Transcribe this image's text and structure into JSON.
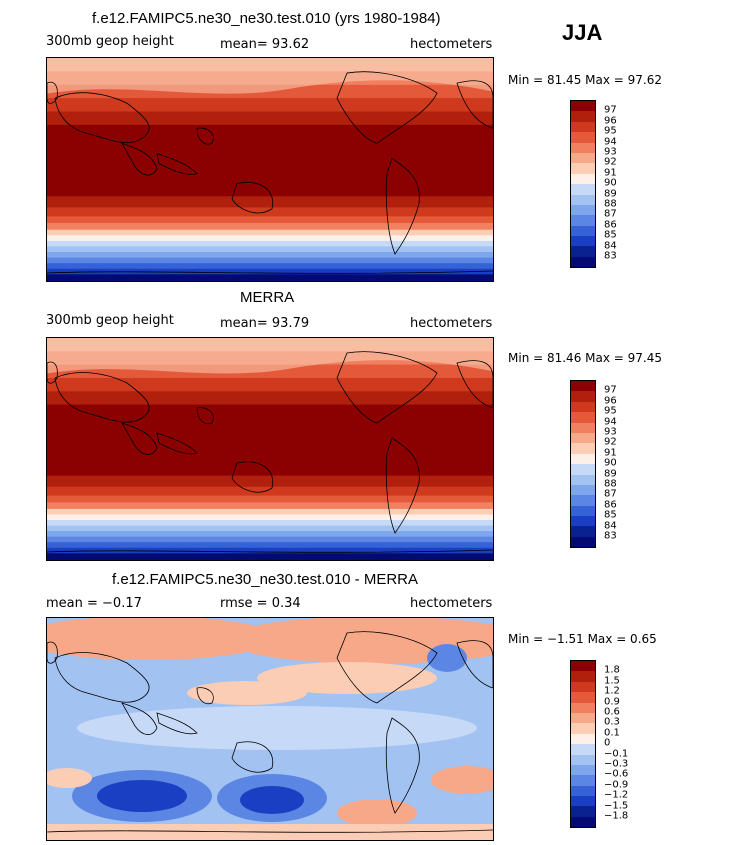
{
  "season": "JJA",
  "panels": [
    {
      "title": "f.e12.FAMIPC5.ne30_ne30.test.010 (yrs 1980-1984)",
      "left_label": "300mb geop height",
      "center_label": "mean=  93.62",
      "right_label": "hectometers",
      "minmax": "Min =  81.45 Max =  97.62",
      "levels": [
        "97",
        "96",
        "95",
        "94",
        "93",
        "92",
        "91",
        "90",
        "89",
        "88",
        "87",
        "86",
        "85",
        "84",
        "83"
      ],
      "colors": [
        "#8b0000",
        "#b0200c",
        "#cf3a1e",
        "#e4593a",
        "#f08060",
        "#f6a889",
        "#fbcdb5",
        "#fdf0e8",
        "#c6daf7",
        "#a2c2f2",
        "#7ea6ec",
        "#5b86e4",
        "#3662d8",
        "#1a3fc2",
        "#0a2190",
        "#030b73"
      ]
    },
    {
      "title": "MERRA",
      "left_label": "300mb geop height",
      "center_label": "mean=  93.79",
      "right_label": "hectometers",
      "minmax": "Min =  81.46 Max =  97.45",
      "levels": [
        "97",
        "96",
        "95",
        "94",
        "93",
        "92",
        "91",
        "90",
        "89",
        "88",
        "87",
        "86",
        "85",
        "84",
        "83"
      ],
      "colors": [
        "#8b0000",
        "#b0200c",
        "#cf3a1e",
        "#e4593a",
        "#f08060",
        "#f6a889",
        "#fbcdb5",
        "#fdf0e8",
        "#c6daf7",
        "#a2c2f2",
        "#7ea6ec",
        "#5b86e4",
        "#3662d8",
        "#1a3fc2",
        "#0a2190",
        "#030b73"
      ]
    },
    {
      "title": "f.e12.FAMIPC5.ne30_ne30.test.010 - MERRA",
      "left_label": "mean =  −0.17",
      "center_label": "rmse =   0.34",
      "right_label": "hectometers",
      "minmax": "Min =  −1.51 Max =   0.65",
      "levels": [
        "1.8",
        "1.5",
        "1.2",
        "0.9",
        "0.6",
        "0.3",
        "0.1",
        "0",
        "−0.1",
        "−0.3",
        "−0.6",
        "−0.9",
        "−1.2",
        "−1.5",
        "−1.8"
      ],
      "colors": [
        "#8b0000",
        "#b0200c",
        "#cf3a1e",
        "#e4593a",
        "#f08060",
        "#f6a889",
        "#fbcdb5",
        "#fdf0e8",
        "#c6daf7",
        "#a2c2f2",
        "#7ea6ec",
        "#5b86e4",
        "#3662d8",
        "#1a3fc2",
        "#0a2190",
        "#030b73"
      ]
    }
  ]
}
